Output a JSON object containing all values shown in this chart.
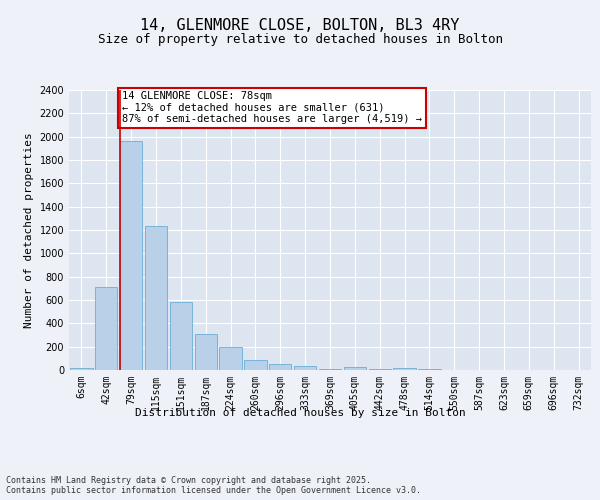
{
  "title": "14, GLENMORE CLOSE, BOLTON, BL3 4RY",
  "subtitle": "Size of property relative to detached houses in Bolton",
  "xlabel": "Distribution of detached houses by size in Bolton",
  "ylabel": "Number of detached properties",
  "categories": [
    "6sqm",
    "42sqm",
    "79sqm",
    "115sqm",
    "151sqm",
    "187sqm",
    "224sqm",
    "260sqm",
    "296sqm",
    "333sqm",
    "369sqm",
    "405sqm",
    "442sqm",
    "478sqm",
    "514sqm",
    "550sqm",
    "587sqm",
    "623sqm",
    "659sqm",
    "696sqm",
    "732sqm"
  ],
  "values": [
    15,
    710,
    1960,
    1230,
    580,
    305,
    195,
    85,
    50,
    35,
    10,
    30,
    10,
    15,
    5,
    2,
    2,
    2,
    2,
    2,
    2
  ],
  "bar_color": "#b8d0e8",
  "bar_edge_color": "#6baed6",
  "highlight_line_color": "#cc0000",
  "highlight_line_index": 2,
  "annotation_text": "14 GLENMORE CLOSE: 78sqm\n← 12% of detached houses are smaller (631)\n87% of semi-detached houses are larger (4,519) →",
  "annotation_box_color": "#cc0000",
  "ylim": [
    0,
    2400
  ],
  "yticks": [
    0,
    200,
    400,
    600,
    800,
    1000,
    1200,
    1400,
    1600,
    1800,
    2000,
    2200,
    2400
  ],
  "background_color": "#eef2f8",
  "plot_bg_color": "#dde5f0",
  "grid_color": "#ffffff",
  "footer_text": "Contains HM Land Registry data © Crown copyright and database right 2025.\nContains public sector information licensed under the Open Government Licence v3.0.",
  "title_fontsize": 11,
  "subtitle_fontsize": 9,
  "axis_label_fontsize": 8,
  "tick_fontsize": 7,
  "annotation_fontsize": 7.5
}
